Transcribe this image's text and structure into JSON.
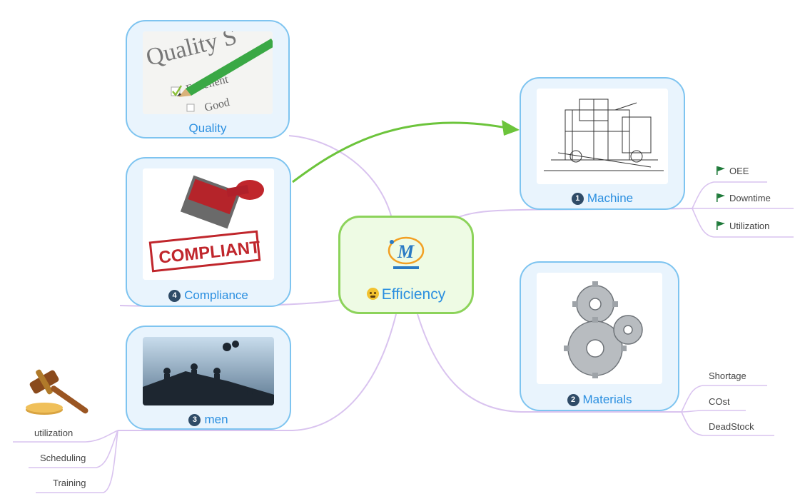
{
  "central_topic": {
    "label": "Efficiency",
    "icon": "worried-face-emoji",
    "logo": "company-logo"
  },
  "topics": {
    "quality": {
      "label": "Quality",
      "image": "quality-checklist-pencil"
    },
    "compliance": {
      "number": "4",
      "label": "Compliance",
      "image": "compliant-stamp"
    },
    "men": {
      "number": "3",
      "label": "men",
      "image": "workers-silhouette"
    },
    "machine": {
      "number": "1",
      "label": "Machine",
      "image": "machine-sketch"
    },
    "materials": {
      "number": "2",
      "label": "Materials",
      "image": "gears"
    }
  },
  "machine_subtopics": [
    "OEE",
    "Downtime",
    "Utilization"
  ],
  "materials_subtopics": [
    "Shortage",
    "COst",
    "DeadStock"
  ],
  "men_subtopics": [
    "utilization",
    "Scheduling",
    "Training"
  ],
  "colors": {
    "topic_border": "#7ec4f0",
    "topic_fill": "#e9f4fd",
    "center_border": "#8cd35a",
    "label_text": "#2b8fe0",
    "branch_line": "#d9c3ef",
    "relationship_arrow": "#6cc43b",
    "flag": "#1f7a3a"
  },
  "men_extra_image": "gavel-icon"
}
